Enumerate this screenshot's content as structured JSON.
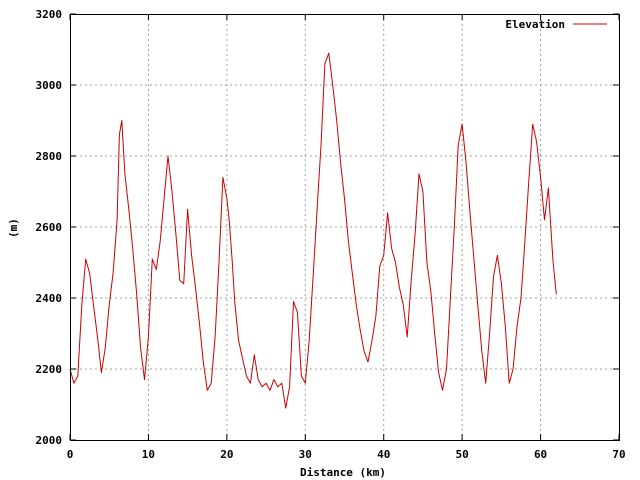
{
  "chart_data": {
    "type": "line",
    "xlabel": "Distance (km)",
    "ylabel": "(m)",
    "xlim": [
      0,
      70
    ],
    "ylim": [
      2000,
      3200
    ],
    "xticks": [
      "0",
      "10",
      "20",
      "30",
      "40",
      "50",
      "60",
      "70"
    ],
    "yticks": [
      "2000",
      "2200",
      "2400",
      "2600",
      "2800",
      "3000",
      "3200"
    ],
    "grid": true,
    "legend_position": "top-right",
    "colors": {
      "line": "#cc0000",
      "grid": "#a0a0a0",
      "frame": "#000000"
    },
    "series": [
      {
        "name": "Elevation",
        "x": [
          0.0,
          0.5,
          1.0,
          1.5,
          2.0,
          2.5,
          3.0,
          3.5,
          4.0,
          4.5,
          5.0,
          5.5,
          6.0,
          6.3,
          6.6,
          7.0,
          7.5,
          8.0,
          8.5,
          9.0,
          9.5,
          10.0,
          10.5,
          11.0,
          11.5,
          12.0,
          12.5,
          13.0,
          13.5,
          14.0,
          14.5,
          15.0,
          15.5,
          16.0,
          16.5,
          17.0,
          17.5,
          18.0,
          18.5,
          19.0,
          19.5,
          20.0,
          20.3,
          20.7,
          21.0,
          21.5,
          22.0,
          22.5,
          23.0,
          23.5,
          24.0,
          24.5,
          25.0,
          25.5,
          26.0,
          26.5,
          27.0,
          27.5,
          28.0,
          28.5,
          29.0,
          29.5,
          30.0,
          30.5,
          31.0,
          31.5,
          32.0,
          32.5,
          33.0,
          33.5,
          34.0,
          34.5,
          35.0,
          35.5,
          36.0,
          36.5,
          37.0,
          37.5,
          38.0,
          38.5,
          39.0,
          39.5,
          40.0,
          40.5,
          41.0,
          41.5,
          42.0,
          42.5,
          43.0,
          43.5,
          44.0,
          44.5,
          45.0,
          45.5,
          46.0,
          46.5,
          47.0,
          47.5,
          48.0,
          48.5,
          49.0,
          49.5,
          50.0,
          50.5,
          51.0,
          51.5,
          52.0,
          52.5,
          53.0,
          53.5,
          54.0,
          54.5,
          55.0,
          55.5,
          56.0,
          56.5,
          57.0,
          57.5,
          58.0,
          58.5,
          59.0,
          59.5,
          60.0,
          60.5,
          61.0,
          61.3,
          61.6,
          62.0
        ],
        "y": [
          2200,
          2160,
          2180,
          2380,
          2510,
          2470,
          2380,
          2290,
          2190,
          2260,
          2380,
          2470,
          2620,
          2860,
          2900,
          2750,
          2650,
          2540,
          2410,
          2260,
          2170,
          2290,
          2510,
          2480,
          2560,
          2680,
          2800,
          2700,
          2580,
          2450,
          2440,
          2650,
          2520,
          2430,
          2330,
          2220,
          2140,
          2160,
          2290,
          2500,
          2740,
          2680,
          2620,
          2500,
          2390,
          2280,
          2230,
          2180,
          2160,
          2240,
          2170,
          2150,
          2160,
          2140,
          2170,
          2150,
          2160,
          2090,
          2150,
          2390,
          2360,
          2180,
          2160,
          2280,
          2460,
          2650,
          2830,
          3060,
          3090,
          3000,
          2900,
          2780,
          2680,
          2560,
          2470,
          2380,
          2310,
          2250,
          2220,
          2280,
          2350,
          2490,
          2520,
          2640,
          2540,
          2500,
          2430,
          2380,
          2290,
          2450,
          2580,
          2750,
          2700,
          2500,
          2420,
          2300,
          2190,
          2140,
          2200,
          2400,
          2600,
          2830,
          2890,
          2780,
          2640,
          2510,
          2380,
          2250,
          2160,
          2300,
          2460,
          2520,
          2440,
          2320,
          2160,
          2200,
          2320,
          2400,
          2560,
          2730,
          2890,
          2840,
          2740,
          2620,
          2710,
          2600,
          2500,
          2410
        ]
      }
    ]
  }
}
